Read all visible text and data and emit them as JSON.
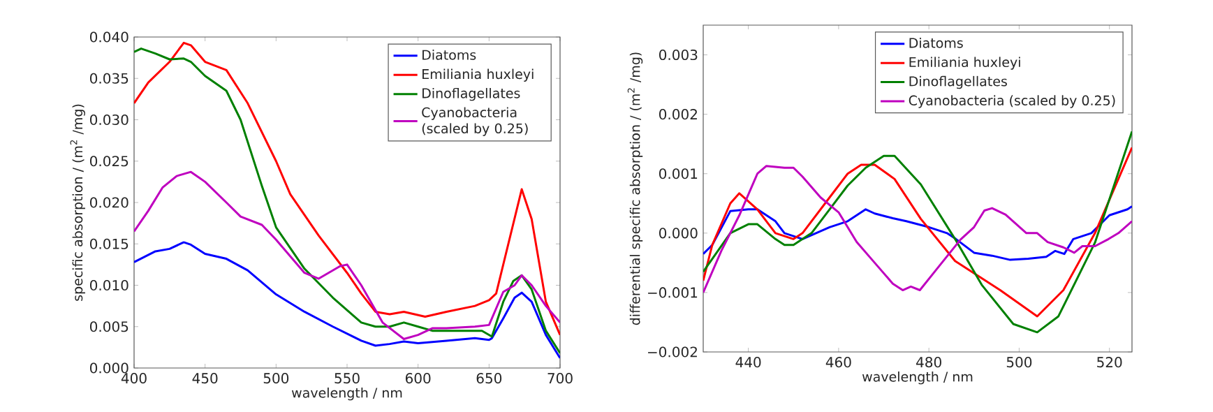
{
  "chart_data": [
    {
      "type": "line",
      "xlabel": "wavelength / nm",
      "ylabel": "specific absorption / (m$^{2}$ /mg)",
      "xlim": [
        400,
        700
      ],
      "ylim": [
        0,
        0.04
      ],
      "xticks": [
        400,
        450,
        500,
        550,
        600,
        650,
        700
      ],
      "yticks": [
        {
          "value": 0,
          "label": "0.000"
        },
        {
          "value": 0.005,
          "label": "0.005"
        },
        {
          "value": 0.01,
          "label": "0.010"
        },
        {
          "value": 0.015,
          "label": "0.015"
        },
        {
          "value": 0.02,
          "label": "0.020"
        },
        {
          "value": 0.025,
          "label": "0.025"
        },
        {
          "value": 0.03,
          "label": "0.030"
        },
        {
          "value": 0.035,
          "label": "0.035"
        },
        {
          "value": 0.04,
          "label": "0.040"
        }
      ],
      "legend": "top right",
      "series": [
        {
          "name": "Diatoms",
          "color": "#0000ff",
          "x": [
            400,
            415,
            425,
            435,
            440,
            450,
            465,
            480,
            500,
            520,
            540,
            560,
            570,
            580,
            590,
            600,
            620,
            640,
            650,
            652,
            660,
            668,
            673,
            680,
            690,
            700
          ],
          "values": [
            0.0128,
            0.0141,
            0.0144,
            0.0152,
            0.0149,
            0.0138,
            0.0132,
            0.0118,
            0.0089,
            0.0068,
            0.005,
            0.0033,
            0.0027,
            0.0029,
            0.0032,
            0.003,
            0.0033,
            0.0036,
            0.0034,
            0.0036,
            0.006,
            0.0085,
            0.0091,
            0.008,
            0.004,
            0.0012
          ]
        },
        {
          "name": "Emiliania huxleyi",
          "color": "#ff0000",
          "x": [
            400,
            410,
            425,
            435,
            440,
            450,
            465,
            480,
            500,
            510,
            530,
            550,
            560,
            570,
            580,
            590,
            605,
            620,
            640,
            650,
            655,
            665,
            673,
            680,
            690,
            700
          ],
          "values": [
            0.032,
            0.0345,
            0.037,
            0.0393,
            0.039,
            0.037,
            0.036,
            0.032,
            0.025,
            0.021,
            0.016,
            0.0115,
            0.009,
            0.0068,
            0.0065,
            0.0068,
            0.0062,
            0.0068,
            0.0075,
            0.0082,
            0.009,
            0.016,
            0.0216,
            0.018,
            0.008,
            0.004
          ]
        },
        {
          "name": "Dinoflagellates",
          "color": "#008000",
          "x": [
            400,
            405,
            415,
            425,
            435,
            440,
            450,
            465,
            475,
            490,
            500,
            520,
            540,
            560,
            570,
            580,
            590,
            600,
            610,
            630,
            645,
            652,
            660,
            667,
            673,
            680,
            690,
            700
          ],
          "values": [
            0.0382,
            0.0386,
            0.038,
            0.0373,
            0.0374,
            0.037,
            0.0353,
            0.0335,
            0.03,
            0.022,
            0.017,
            0.012,
            0.0085,
            0.0055,
            0.005,
            0.005,
            0.0055,
            0.005,
            0.0045,
            0.0045,
            0.0045,
            0.0038,
            0.008,
            0.0105,
            0.0112,
            0.0095,
            0.0045,
            0.0018
          ]
        },
        {
          "name": "Cyanobacteria (scaled by 0.25)",
          "color": "#bf00bf",
          "x": [
            400,
            410,
            420,
            430,
            440,
            450,
            465,
            475,
            490,
            500,
            520,
            530,
            545,
            550,
            560,
            575,
            590,
            600,
            610,
            620,
            640,
            650,
            660,
            668,
            673,
            680,
            690,
            700
          ],
          "values": [
            0.0165,
            0.019,
            0.0218,
            0.0232,
            0.0237,
            0.0225,
            0.02,
            0.0183,
            0.0173,
            0.0155,
            0.0115,
            0.0108,
            0.0123,
            0.0125,
            0.01,
            0.0055,
            0.0035,
            0.004,
            0.0048,
            0.0048,
            0.005,
            0.0052,
            0.0092,
            0.01,
            0.0112,
            0.01,
            0.0075,
            0.0055
          ]
        }
      ]
    },
    {
      "type": "line",
      "xlabel": "wavelength / nm",
      "ylabel": "differential specific absorption / (m$^{2}$ /mg)",
      "xlim": [
        430,
        525
      ],
      "ylim": [
        -0.002,
        0.0035
      ],
      "xticks": [
        440,
        460,
        480,
        500,
        520
      ],
      "yticks": [
        {
          "value": -0.002,
          "label": "−0.002"
        },
        {
          "value": -0.001,
          "label": "−0.001"
        },
        {
          "value": 0,
          "label": "0.000"
        },
        {
          "value": 0.001,
          "label": "0.001"
        },
        {
          "value": 0.002,
          "label": "0.002"
        },
        {
          "value": 0.003,
          "label": "0.003"
        }
      ],
      "legend": "top right",
      "series": [
        {
          "name": "Diatoms",
          "color": "#0000ff",
          "x": [
            430,
            432,
            436,
            440,
            442,
            446,
            448,
            452,
            458,
            460,
            462,
            466,
            468,
            472,
            475,
            480,
            484,
            486,
            490,
            494,
            498,
            502,
            506,
            508,
            510,
            512,
            516,
            520,
            524,
            525
          ],
          "values": [
            -0.00035,
            -0.0002,
            0.00037,
            0.0004,
            0.0004,
            0.0002,
            0.0,
            -0.0001,
            0.0001,
            0.00015,
            0.0002,
            0.0004,
            0.00033,
            0.00025,
            0.0002,
            0.0001,
            0.0,
            -0.0001,
            -0.00033,
            -0.00038,
            -0.00045,
            -0.00043,
            -0.0004,
            -0.0003,
            -0.00035,
            -0.0001,
            0.0,
            0.0003,
            0.0004,
            0.00045
          ]
        },
        {
          "name": "Emiliania huxleyi",
          "color": "#ff0000",
          "x": [
            430,
            432,
            436,
            438,
            442,
            446,
            450,
            452,
            458,
            462,
            465,
            468,
            472.4,
            478.2,
            485.8,
            495.8,
            504,
            509.8,
            516.8,
            525
          ],
          "values": [
            -0.0008,
            -0.0002,
            0.0005,
            0.00067,
            0.0004,
            0.0,
            -0.0001,
            0.0,
            0.0006,
            0.001,
            0.00115,
            0.00115,
            0.00091,
            0.00024,
            -0.00047,
            -0.00096,
            -0.0014,
            -0.00096,
            0.0,
            0.00144
          ]
        },
        {
          "name": "Dinoflagellates",
          "color": "#008000",
          "x": [
            430,
            436,
            440,
            442,
            446,
            448,
            450,
            454,
            458,
            462,
            466,
            470,
            472.4,
            478.2,
            485.8,
            491.7,
            498.7,
            504,
            508.7,
            516.8,
            525
          ],
          "values": [
            -0.00065,
            0.0,
            0.00015,
            0.00015,
            -0.0001,
            -0.0002,
            -0.0002,
            0.0,
            0.0004,
            0.0008,
            0.0011,
            0.0013,
            0.0013,
            0.00082,
            -0.0001,
            -0.00087,
            -0.00153,
            -0.00167,
            -0.0014,
            -0.00016,
            0.00171
          ]
        },
        {
          "name": "Cyanobacteria (scaled by 0.25)",
          "color": "#bf00bf",
          "x": [
            430,
            434,
            438,
            442,
            444,
            448,
            450,
            452,
            456,
            460,
            464,
            468,
            472,
            474.2,
            476,
            478,
            481.8,
            487,
            490,
            492.3,
            494,
            497,
            501.6,
            504,
            506.3,
            509.8,
            512.2,
            514,
            516.8,
            519.8,
            522,
            525
          ],
          "values": [
            -0.001,
            -0.0003,
            0.0003,
            0.001,
            0.00113,
            0.0011,
            0.0011,
            0.00095,
            0.0006,
            0.00035,
            -0.00015,
            -0.0005,
            -0.00085,
            -0.00096,
            -0.0009,
            -0.00096,
            -0.0006,
            -0.00011,
            0.0001,
            0.00038,
            0.00042,
            0.00031,
            0.0,
            0.0,
            -0.00015,
            -0.00024,
            -0.00033,
            -0.00022,
            -0.00022,
            -0.0001,
            0.0,
            0.0002
          ]
        }
      ]
    }
  ]
}
